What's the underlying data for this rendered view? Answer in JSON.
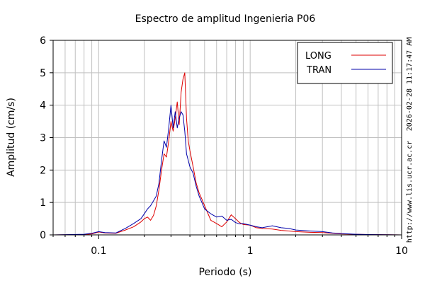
{
  "chart_data": {
    "type": "line",
    "title": "Espectro de amplitud Ingenieria P06",
    "xlabel": "Periodo (s)",
    "ylabel": "Amplitud (cm/s)",
    "x_scale": "log",
    "xlim": [
      0.05,
      10
    ],
    "ylim": [
      0,
      6
    ],
    "x_ticks": [
      {
        "value": 0.1,
        "label": "0.1"
      },
      {
        "value": 1,
        "label": "1"
      },
      {
        "value": 10,
        "label": "10"
      }
    ],
    "y_ticks": [
      {
        "value": 0,
        "label": "0"
      },
      {
        "value": 1,
        "label": "1"
      },
      {
        "value": 2,
        "label": "2"
      },
      {
        "value": 3,
        "label": "3"
      },
      {
        "value": 4,
        "label": "4"
      },
      {
        "value": 5,
        "label": "5"
      },
      {
        "value": 6,
        "label": "6"
      }
    ],
    "grid": true,
    "legend_position": "top-right",
    "timestamp": "2026-02-28 11:17:47 AM",
    "url": "http://www.lis.ucr.ac.cr",
    "series": [
      {
        "name": "LONG",
        "color": "#dd0000",
        "x": [
          0.05,
          0.08,
          0.09,
          0.1,
          0.11,
          0.13,
          0.15,
          0.17,
          0.19,
          0.2,
          0.21,
          0.22,
          0.23,
          0.24,
          0.25,
          0.26,
          0.27,
          0.28,
          0.29,
          0.3,
          0.31,
          0.32,
          0.33,
          0.34,
          0.35,
          0.36,
          0.37,
          0.38,
          0.39,
          0.4,
          0.42,
          0.44,
          0.46,
          0.48,
          0.5,
          0.55,
          0.6,
          0.65,
          0.7,
          0.75,
          0.8,
          0.85,
          0.9,
          1.0,
          1.1,
          1.2,
          1.4,
          1.6,
          1.8,
          2.0,
          2.5,
          3.0,
          3.5,
          4.0,
          5.0,
          6.0,
          8.0,
          10.0
        ],
        "y": [
          0.0,
          0.01,
          0.03,
          0.09,
          0.06,
          0.05,
          0.15,
          0.25,
          0.4,
          0.5,
          0.55,
          0.45,
          0.6,
          0.9,
          1.4,
          2.0,
          2.5,
          2.4,
          2.9,
          3.5,
          3.2,
          3.6,
          4.1,
          3.4,
          4.4,
          4.8,
          5.0,
          3.6,
          2.9,
          2.6,
          2.1,
          1.6,
          1.3,
          1.1,
          0.9,
          0.45,
          0.35,
          0.25,
          0.4,
          0.62,
          0.5,
          0.38,
          0.32,
          0.3,
          0.22,
          0.2,
          0.18,
          0.14,
          0.12,
          0.1,
          0.08,
          0.07,
          0.05,
          0.03,
          0.02,
          0.01,
          0.005,
          0.0
        ]
      },
      {
        "name": "TRAN",
        "color": "#0000aa",
        "x": [
          0.05,
          0.08,
          0.09,
          0.1,
          0.11,
          0.13,
          0.15,
          0.17,
          0.19,
          0.2,
          0.21,
          0.22,
          0.23,
          0.24,
          0.25,
          0.26,
          0.27,
          0.28,
          0.29,
          0.3,
          0.31,
          0.32,
          0.33,
          0.34,
          0.35,
          0.36,
          0.37,
          0.38,
          0.39,
          0.4,
          0.42,
          0.44,
          0.46,
          0.48,
          0.5,
          0.55,
          0.6,
          0.65,
          0.7,
          0.75,
          0.8,
          0.85,
          0.9,
          1.0,
          1.1,
          1.2,
          1.4,
          1.6,
          1.8,
          2.0,
          2.5,
          3.0,
          3.5,
          4.0,
          5.0,
          6.0,
          8.0,
          10.0
        ],
        "y": [
          0.0,
          0.02,
          0.05,
          0.1,
          0.07,
          0.06,
          0.2,
          0.35,
          0.5,
          0.65,
          0.8,
          0.9,
          1.05,
          1.2,
          1.6,
          2.3,
          2.9,
          2.7,
          3.3,
          4.0,
          3.3,
          3.8,
          3.3,
          3.6,
          3.8,
          3.7,
          3.2,
          2.5,
          2.3,
          2.1,
          1.9,
          1.5,
          1.2,
          1.0,
          0.8,
          0.65,
          0.55,
          0.58,
          0.45,
          0.48,
          0.38,
          0.34,
          0.35,
          0.3,
          0.25,
          0.22,
          0.28,
          0.22,
          0.2,
          0.15,
          0.12,
          0.1,
          0.06,
          0.04,
          0.02,
          0.01,
          0.005,
          0.0
        ]
      }
    ]
  }
}
